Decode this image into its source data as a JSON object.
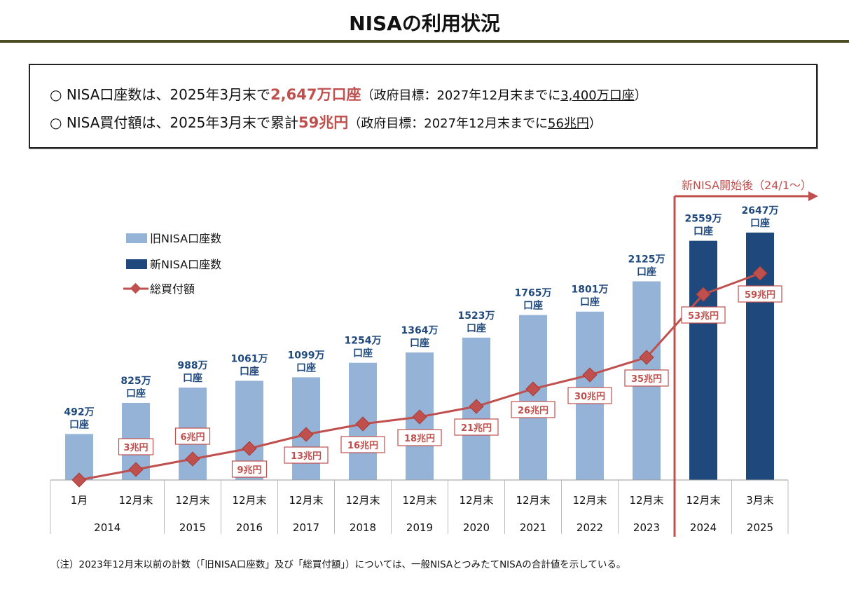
{
  "title": "NISAの利用状況",
  "summary": [
    {
      "bullet": "○",
      "prefix": "NISA口座数は、2025年3月末で",
      "highlight": "2,647万口座",
      "goal_prefix": "（政府目標：2027年12月末までに",
      "goal": "3,400万口座",
      "goal_suffix": "）"
    },
    {
      "bullet": "○",
      "prefix": "NISA買付額は、2025年3月末で累計",
      "highlight": "59兆円",
      "goal_prefix": "（政府目標：2027年12月末までに",
      "goal": "56兆円",
      "goal_suffix": "）"
    }
  ],
  "note": "（注）2023年12月末以前の計数（「旧NISA口座数」及び「総買付額」）については、一般NISAとつみたてNISAの合計値を示している。",
  "chart_data": {
    "type": "bar",
    "categories": [
      "1月",
      "12月末",
      "12月末",
      "12月末",
      "12月末",
      "12月末",
      "12月末",
      "12月末",
      "12月末",
      "12月末",
      "12月末",
      "12月末",
      "3月末"
    ],
    "years": [
      "2014",
      "2015",
      "2016",
      "2017",
      "2018",
      "2019",
      "2020",
      "2021",
      "2022",
      "2023",
      "2024",
      "2025"
    ],
    "series": [
      {
        "name": "旧NISA口座数",
        "type": "bar",
        "color": "#95b3d7",
        "values": [
          492,
          825,
          988,
          1061,
          1099,
          1254,
          1364,
          1523,
          1765,
          1801,
          2125,
          null,
          null
        ]
      },
      {
        "name": "新NISA口座数",
        "type": "bar",
        "color": "#1f497d",
        "values": [
          null,
          null,
          null,
          null,
          null,
          null,
          null,
          null,
          null,
          null,
          null,
          2559,
          2647
        ]
      },
      {
        "name": "総買付額",
        "type": "line",
        "color": "#c0504d",
        "values": [
          0,
          3,
          6,
          9,
          13,
          16,
          18,
          21,
          26,
          30,
          35,
          53,
          59
        ]
      }
    ],
    "bar_labels": [
      "492万\n口座",
      "825万\n口座",
      "988万\n口座",
      "1061万\n口座",
      "1099万\n口座",
      "1254万\n口座",
      "1364万\n口座",
      "1523万\n口座",
      "1765万\n口座",
      "1801万\n口座",
      "2125万\n口座",
      "2559万\n口座",
      "2647万\n口座"
    ],
    "line_labels": [
      "",
      "3兆円",
      "6兆円",
      "9兆円",
      "13兆円",
      "16兆円",
      "18兆円",
      "21兆円",
      "26兆円",
      "30兆円",
      "35兆円",
      "53兆円",
      "59兆円"
    ],
    "bar_unit": "万口座",
    "line_unit": "兆円",
    "annotation": "新NISA開始後（24/1～）",
    "legend_placement": "top-left",
    "grid": false
  }
}
